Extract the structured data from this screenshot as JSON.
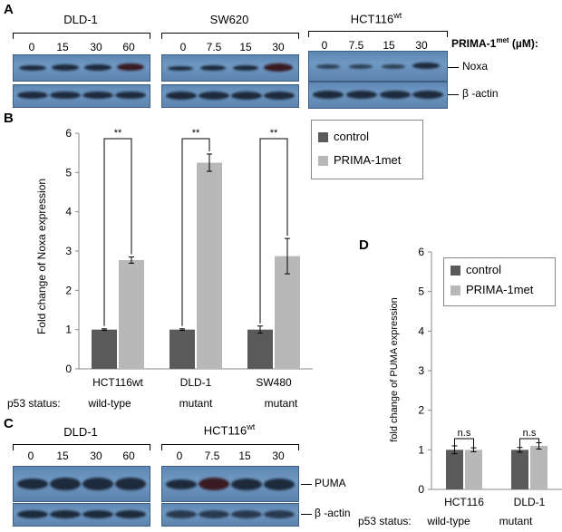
{
  "panel_a": {
    "letter": "A",
    "groups": [
      {
        "name": "DLD-1",
        "lanes": [
          "0",
          "15",
          "30",
          "60"
        ],
        "noxa": [
          0.45,
          0.65,
          0.7,
          0.9
        ]
      },
      {
        "name": "SW620",
        "lanes": [
          "0",
          "7.5",
          "15",
          "30"
        ],
        "noxa": [
          0.45,
          0.55,
          0.65,
          0.95
        ]
      },
      {
        "name": "HCT116",
        "name_sup": "wt",
        "lanes": [
          "0",
          "7.5",
          "15",
          "30"
        ],
        "noxa": [
          0.4,
          0.4,
          0.45,
          0.75
        ]
      }
    ],
    "treatment_label": "PRIMA-1",
    "treatment_sup": "met",
    "treatment_unit": " (µM):",
    "row_labels": [
      "Noxa",
      "β -actin"
    ]
  },
  "panel_b": {
    "letter": "B",
    "p53_prefix": "p53 status:",
    "p53_status": [
      "wild-type",
      "mutant",
      "mutant"
    ],
    "significance": [
      "**",
      "**",
      "**"
    ]
  },
  "panel_c": {
    "letter": "C",
    "groups": [
      {
        "name": "DLD-1",
        "lanes": [
          "0",
          "15",
          "30",
          "60"
        ]
      },
      {
        "name": "HCT116",
        "name_sup": "wt",
        "lanes": [
          "0",
          "7.5",
          "15",
          "30"
        ]
      }
    ],
    "row_labels": [
      "PUMA",
      "β -actin"
    ]
  },
  "panel_d": {
    "letter": "D",
    "p53_prefix": "p53 status:",
    "p53_status": [
      "wild-type",
      "mutant"
    ],
    "significance": [
      "n.s",
      "n.s"
    ]
  },
  "colors": {
    "control": "#5a5a5a",
    "prima": "#b8b8b8"
  },
  "chart_data": [
    {
      "type": "bar",
      "panel": "B",
      "categories": [
        "HCT116wt",
        "DLD-1",
        "SW480"
      ],
      "series": [
        {
          "name": "control",
          "values": [
            1.0,
            1.0,
            1.0
          ],
          "errors": [
            0.02,
            0.02,
            0.09
          ]
        },
        {
          "name": "PRIMA-1met",
          "values": [
            2.77,
            5.25,
            2.87
          ],
          "errors": [
            0.08,
            0.22,
            0.45
          ]
        }
      ],
      "ylabel": "Fold change of Noxa expression",
      "yticks": [
        0,
        1,
        2,
        3,
        4,
        5,
        6
      ],
      "ylim": [
        0,
        6
      ],
      "legend": [
        "control",
        "PRIMA-1met"
      ]
    },
    {
      "type": "bar",
      "panel": "D",
      "categories": [
        "HCT116",
        "DLD-1"
      ],
      "series": [
        {
          "name": "control",
          "values": [
            1.0,
            1.0
          ],
          "errors": [
            0.1,
            0.06
          ]
        },
        {
          "name": "PRIMA-1met",
          "values": [
            1.0,
            1.1
          ],
          "errors": [
            0.05,
            0.08
          ]
        }
      ],
      "ylabel": "fold change of PUMA expression",
      "yticks": [
        0,
        1,
        2,
        3,
        4,
        5,
        6
      ],
      "ylim": [
        0,
        6
      ],
      "legend": [
        "control",
        "PRIMA-1met"
      ]
    }
  ]
}
